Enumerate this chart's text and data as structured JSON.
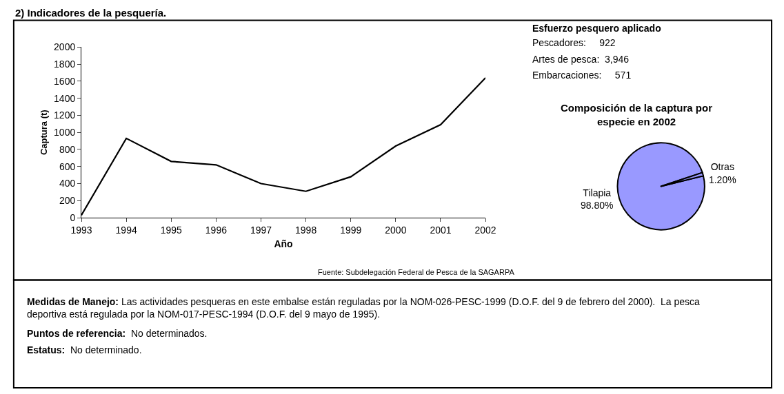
{
  "chart_data": [
    {
      "type": "line",
      "title": "2) Indicadores de la pesquería.",
      "xlabel": "Año",
      "ylabel": "Captura (t)",
      "x": [
        1993,
        1994,
        1995,
        1996,
        1997,
        1998,
        1999,
        2000,
        2001,
        2002
      ],
      "series": [
        {
          "color": "#000000",
          "values": [
            30,
            930,
            660,
            620,
            400,
            310,
            480,
            840,
            1090,
            1640
          ]
        }
      ],
      "xlim": [
        1993,
        2002
      ],
      "xticks": [
        1993,
        1994,
        1995,
        1996,
        1997,
        1998,
        1999,
        2000,
        2001,
        2002
      ],
      "ylim": [
        0,
        2000
      ],
      "yticks": [
        0,
        200,
        400,
        600,
        800,
        1000,
        1200,
        1400,
        1600,
        1800,
        2000
      ],
      "legend": false,
      "marker": "none",
      "line_style": "solid",
      "annotations": [
        "Fuente: Subdelegación Federal de Pesca de la SAGARPA"
      ]
    },
    {
      "type": "other",
      "title": "Esfuerzo pesquero aplicado",
      "annotations": [
        "Pescadores:     922",
        "Artes de pesca:  3,946",
        "Embarcaciones:     571"
      ]
    },
    {
      "type": "pie",
      "title": "Composición de la captura por especie en 2002",
      "categories": [
        "Tilapia",
        "Otras"
      ],
      "values": [
        98.8,
        1.2
      ],
      "colors": [
        "#9999ff",
        "#9999ff"
      ],
      "value_labels": [
        "98.80%",
        "1.20%"
      ],
      "legend": false
    },
    {
      "type": "other",
      "annotations": [
        "Medidas de Manejo: Las actividades pesqueras en este embalse están reguladas por la NOM-026-PESC-1999 (D.O.F. del 9 de febrero del 2000).  La pesca deportiva está regulada por la NOM-017-PESC-1994 (D.O.F. del 9 mayo de 1995).",
        "Puntos de referencia:  No determinados.",
        "Estatus:  No determinado."
      ]
    }
  ]
}
